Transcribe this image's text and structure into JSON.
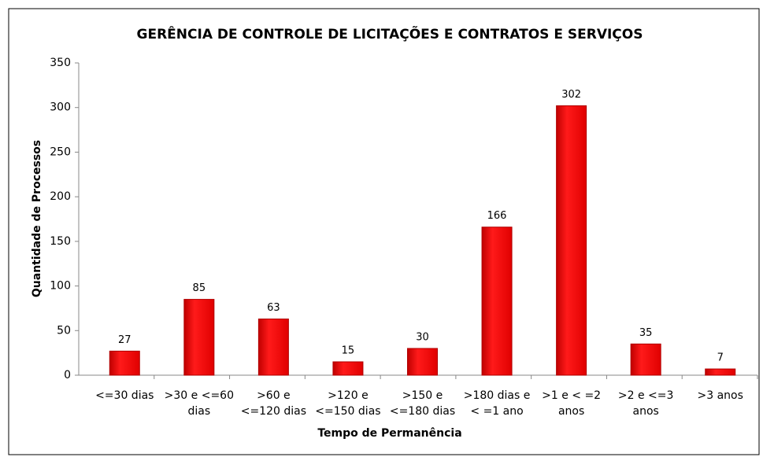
{
  "chart_data": {
    "type": "bar",
    "title": "GERÊNCIA DE CONTROLE DE LICITAÇÕES E CONTRATOS E SERVIÇOS",
    "x_label": "Tempo de Permanência",
    "y_label": "Quantidade de Processos",
    "categories": [
      "<=30 dias",
      ">30 e <=60 dias",
      ">60 e <=120 dias",
      ">120 e <=150 dias",
      ">150 e <=180 dias",
      ">180 dias e < =1 ano",
      ">1 e < =2 anos",
      ">2 e <=3 anos",
      ">3 anos"
    ],
    "values": [
      27,
      85,
      63,
      15,
      30,
      166,
      302,
      35,
      7
    ],
    "color": "#ff0000",
    "ylim": [
      0,
      350
    ],
    "yticks": [
      0,
      50,
      100,
      150,
      200,
      250,
      300,
      350
    ],
    "grid": false
  }
}
